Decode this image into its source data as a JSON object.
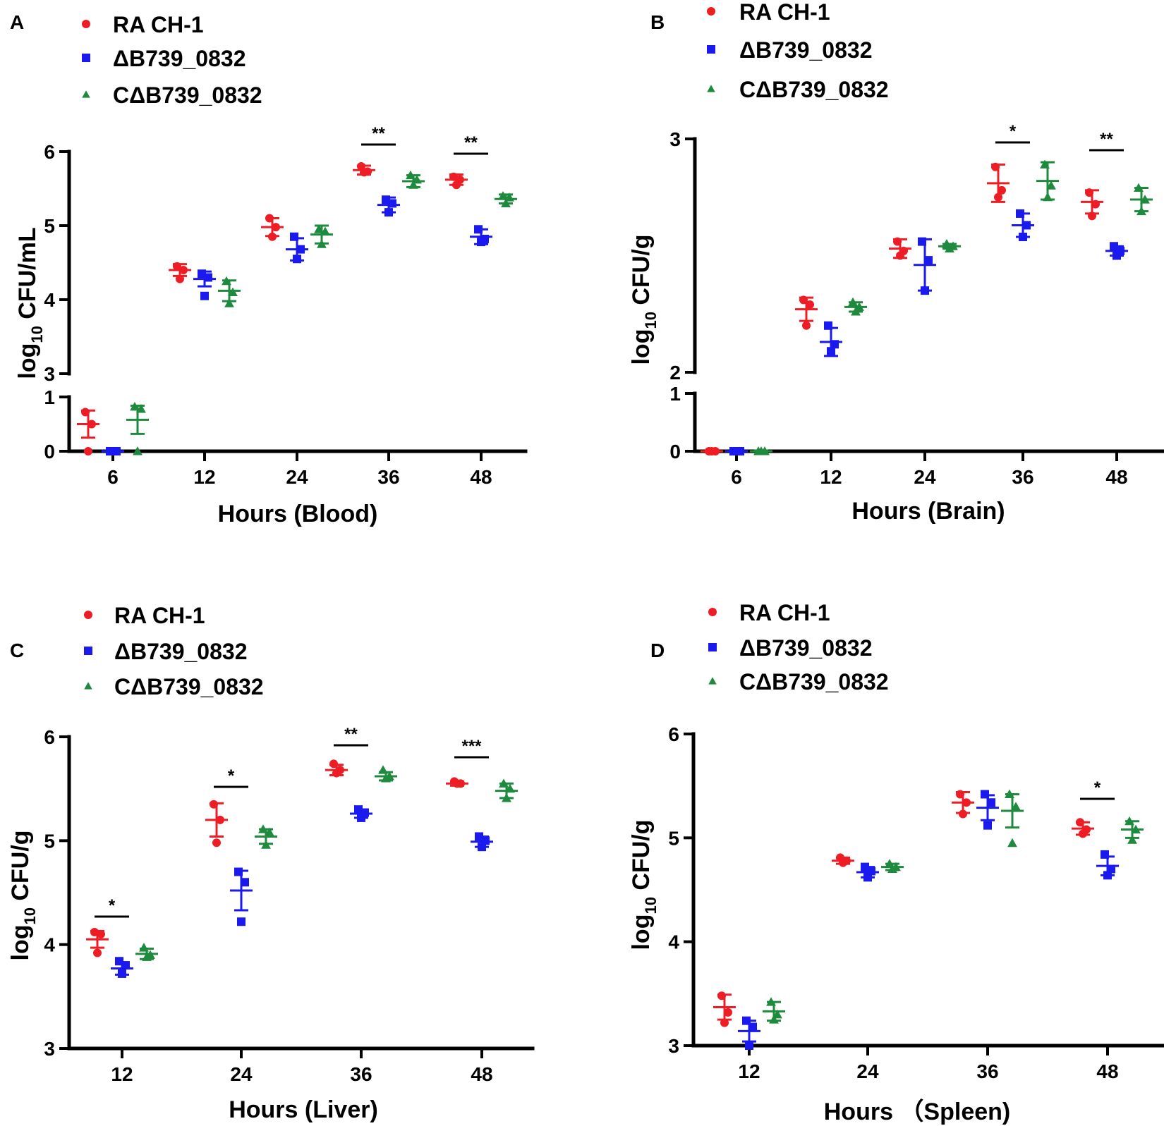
{
  "colors": {
    "RA CH-1": "#ee1c25",
    "ΔB739_0832": "#1a1aee",
    "CΔB739_0832": "#1e8a3e",
    "axis": "#000000"
  },
  "legend": [
    {
      "name": "RA CH-1",
      "marker": "circle"
    },
    {
      "name": "ΔB739_0832",
      "marker": "square"
    },
    {
      "name": "CΔB739_0832",
      "marker": "triangle"
    }
  ],
  "chart_data": [
    {
      "panel": "A",
      "type": "scatter",
      "xlabel": "Hours (Blood)",
      "ylabel_main": "log",
      "ylabel_sub": "10",
      "ylabel_rest": " CFU/mL",
      "categories": [
        "6",
        "12",
        "24",
        "36",
        "48"
      ],
      "y_segments": [
        {
          "range": [
            0,
            1
          ],
          "ticks": [
            "0",
            "1"
          ]
        },
        {
          "range": [
            3,
            6
          ],
          "ticks": [
            "3",
            "4",
            "5",
            "6"
          ]
        }
      ],
      "series": [
        {
          "name": "RA CH-1",
          "mean": [
            0.5,
            4.4,
            4.98,
            5.75,
            5.62
          ],
          "sd": [
            0.25,
            0.08,
            0.12,
            0.06,
            0.07
          ],
          "points": [
            [
              0.72,
              0.5,
              0.0
            ],
            [
              4.45,
              4.4,
              4.28
            ],
            [
              5.1,
              4.98,
              4.85
            ],
            [
              5.8,
              5.73,
              5.72
            ],
            [
              5.66,
              5.62,
              5.55
            ]
          ]
        },
        {
          "name": "ΔB739_0832",
          "mean": [
            0.0,
            4.28,
            4.68,
            5.28,
            4.85
          ],
          "sd": [
            0.02,
            0.1,
            0.15,
            0.1,
            0.1
          ],
          "points": [
            [
              0.0,
              0.0,
              0.0
            ],
            [
              4.35,
              4.3,
              4.05
            ],
            [
              4.85,
              4.68,
              4.55
            ],
            [
              5.35,
              5.3,
              5.18
            ],
            [
              4.95,
              4.82,
              4.78
            ]
          ]
        },
        {
          "name": "CΔB739_0832",
          "mean": [
            0.58,
            4.12,
            4.88,
            5.6,
            5.36
          ],
          "sd": [
            0.26,
            0.14,
            0.12,
            0.08,
            0.06
          ],
          "points": [
            [
              0.82,
              0.78,
              0.0
            ],
            [
              4.25,
              4.1,
              3.95
            ],
            [
              4.95,
              4.92,
              4.75
            ],
            [
              5.68,
              5.62,
              5.55
            ],
            [
              5.4,
              5.38,
              5.3
            ]
          ]
        }
      ],
      "significance": [
        {
          "category": "36",
          "label": "**"
        },
        {
          "category": "48",
          "label": "**"
        }
      ]
    },
    {
      "panel": "B",
      "type": "scatter",
      "xlabel": "Hours (Brain)",
      "ylabel_main": "log",
      "ylabel_sub": "10",
      "ylabel_rest": " CFU/g",
      "categories": [
        "6",
        "12",
        "24",
        "36",
        "48"
      ],
      "y_segments": [
        {
          "range": [
            0,
            1
          ],
          "ticks": [
            "0",
            "1"
          ]
        },
        {
          "range": [
            2,
            3
          ],
          "ticks": [
            "2",
            "3"
          ]
        }
      ],
      "series": [
        {
          "name": "RA CH-1",
          "mean": [
            0.0,
            2.27,
            2.53,
            2.81,
            2.73
          ],
          "sd": [
            0.01,
            0.05,
            0.04,
            0.08,
            0.05
          ],
          "points": [
            [
              0.0,
              0.0,
              0.0
            ],
            [
              2.31,
              2.29,
              2.2
            ],
            [
              2.56,
              2.52,
              2.5
            ],
            [
              2.88,
              2.78,
              2.75
            ],
            [
              2.77,
              2.72,
              2.67
            ]
          ]
        },
        {
          "name": "ΔB739_0832",
          "mean": [
            0.0,
            2.13,
            2.46,
            2.63,
            2.52
          ],
          "sd": [
            0.01,
            0.06,
            0.11,
            0.05,
            0.02
          ],
          "points": [
            [
              0.0,
              0.0,
              0.0
            ],
            [
              2.2,
              2.12,
              2.09
            ],
            [
              2.56,
              2.48,
              2.35
            ],
            [
              2.68,
              2.63,
              2.58
            ],
            [
              2.54,
              2.52,
              2.5
            ]
          ]
        },
        {
          "name": "CΔB739_0832",
          "mean": [
            0.0,
            2.28,
            2.54,
            2.82,
            2.74
          ],
          "sd": [
            0.01,
            0.02,
            0.01,
            0.08,
            0.05
          ],
          "points": [
            [
              0.0,
              0.0,
              0.0
            ],
            [
              2.3,
              2.28,
              2.26
            ],
            [
              2.55,
              2.54,
              2.53
            ],
            [
              2.89,
              2.8,
              2.75
            ],
            [
              2.79,
              2.74,
              2.69
            ]
          ]
        }
      ],
      "significance": [
        {
          "category": "36",
          "label": "*"
        },
        {
          "category": "48",
          "label": "**"
        }
      ]
    },
    {
      "panel": "C",
      "type": "scatter",
      "xlabel": "Hours (Liver)",
      "ylabel_main": "log",
      "ylabel_sub": "10",
      "ylabel_rest": " CFU/g",
      "categories": [
        "12",
        "24",
        "36",
        "48"
      ],
      "y_segments": [
        {
          "range": [
            3,
            6
          ],
          "ticks": [
            "3",
            "4",
            "5",
            "6"
          ]
        }
      ],
      "series": [
        {
          "name": "RA CH-1",
          "mean": [
            4.05,
            5.2,
            5.68,
            5.55
          ],
          "sd": [
            0.08,
            0.16,
            0.05,
            0.02
          ],
          "points": [
            [
              4.12,
              4.1,
              3.92
            ],
            [
              5.35,
              5.2,
              4.98
            ],
            [
              5.74,
              5.68,
              5.65
            ],
            [
              5.57,
              5.55,
              5.55
            ]
          ]
        },
        {
          "name": "ΔB739_0832",
          "mean": [
            3.77,
            4.52,
            5.26,
            4.99
          ],
          "sd": [
            0.06,
            0.19,
            0.04,
            0.05
          ],
          "points": [
            [
              3.84,
              3.8,
              3.72
            ],
            [
              4.7,
              4.6,
              4.22
            ],
            [
              5.3,
              5.27,
              5.22
            ],
            [
              5.04,
              5.0,
              4.94
            ]
          ]
        },
        {
          "name": "CΔB739_0832",
          "mean": [
            3.91,
            5.04,
            5.62,
            5.48
          ],
          "sd": [
            0.05,
            0.07,
            0.04,
            0.07
          ],
          "points": [
            [
              3.97,
              3.9,
              3.88
            ],
            [
              5.11,
              5.08,
              4.96
            ],
            [
              5.68,
              5.62,
              5.6
            ],
            [
              5.55,
              5.5,
              5.41
            ]
          ]
        }
      ],
      "significance": [
        {
          "category": "12",
          "label": "*"
        },
        {
          "category": "24",
          "label": "*"
        },
        {
          "category": "36",
          "label": "**"
        },
        {
          "category": "48",
          "label": "***"
        }
      ]
    },
    {
      "panel": "D",
      "type": "scatter",
      "xlabel": "Hours （Spleen)",
      "ylabel_main": "log",
      "ylabel_sub": "10",
      "ylabel_rest": " CFU/g",
      "categories": [
        "12",
        "24",
        "36",
        "48"
      ],
      "y_segments": [
        {
          "range": [
            3,
            6
          ],
          "ticks": [
            "3",
            "4",
            "5",
            "6"
          ]
        }
      ],
      "series": [
        {
          "name": "RA CH-1",
          "mean": [
            3.37,
            4.78,
            5.34,
            5.09
          ],
          "sd": [
            0.12,
            0.03,
            0.1,
            0.06
          ],
          "points": [
            [
              3.48,
              3.32,
              3.22
            ],
            [
              4.81,
              4.78,
              4.76
            ],
            [
              5.42,
              5.34,
              5.23
            ],
            [
              5.15,
              5.08,
              5.04
            ]
          ]
        },
        {
          "name": "ΔB739_0832",
          "mean": [
            3.14,
            4.67,
            5.29,
            4.73
          ],
          "sd": [
            0.1,
            0.05,
            0.12,
            0.09
          ],
          "points": [
            [
              3.24,
              3.18,
              3.0
            ],
            [
              4.72,
              4.68,
              4.62
            ],
            [
              5.42,
              5.34,
              5.12
            ],
            [
              4.84,
              4.7,
              4.64
            ]
          ]
        },
        {
          "name": "CΔB739_0832",
          "mean": [
            3.33,
            4.72,
            5.26,
            5.08
          ],
          "sd": [
            0.09,
            0.03,
            0.16,
            0.08
          ],
          "points": [
            [
              3.42,
              3.3,
              3.25
            ],
            [
              4.75,
              4.72,
              4.7
            ],
            [
              5.42,
              5.3,
              4.95
            ],
            [
              5.16,
              5.08,
              4.98
            ]
          ]
        }
      ],
      "significance": [
        {
          "category": "48",
          "label": "*"
        }
      ]
    }
  ]
}
